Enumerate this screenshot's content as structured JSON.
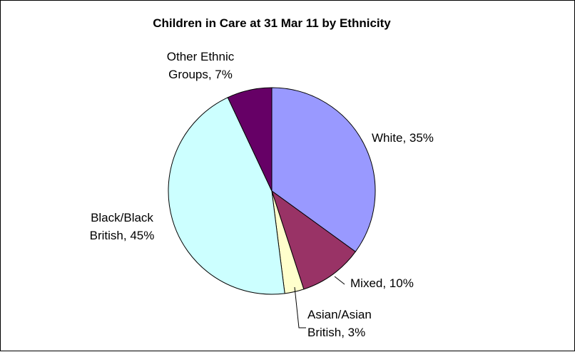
{
  "chart_data": {
    "type": "pie",
    "title": "Children in Care at 31 Mar 11 by Ethnicity",
    "slices": [
      {
        "label": "White, 35%",
        "lines": [
          "White, 35%"
        ],
        "value": 35,
        "color": "#9999ff"
      },
      {
        "label": "Mixed, 10%",
        "lines": [
          "Mixed, 10%"
        ],
        "value": 10,
        "color": "#993366"
      },
      {
        "label": "Asian/Asian British, 3%",
        "lines": [
          "Asian/Asian",
          "British, 3%"
        ],
        "value": 3,
        "color": "#ffffcc"
      },
      {
        "label": "Black/Black British, 45%",
        "lines": [
          "Black/Black",
          "British, 45%"
        ],
        "value": 45,
        "color": "#ccffff"
      },
      {
        "label": "Other Ethnic Groups, 7%",
        "lines": [
          "Other Ethnic",
          "Groups, 7%"
        ],
        "value": 7,
        "color": "#660066"
      }
    ]
  }
}
